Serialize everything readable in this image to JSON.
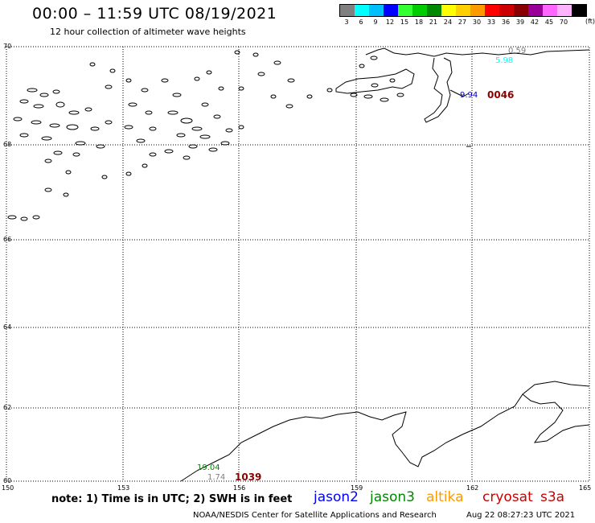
{
  "header": {
    "title": "00:00  –  11:59 UTC 08/19/2021",
    "subtitle": "12 hour collection of altimeter wave heights"
  },
  "colorbar": {
    "unit": "(ft)",
    "entries": [
      {
        "label": "3",
        "color": "#808080"
      },
      {
        "label": "6",
        "color": "#00ffff"
      },
      {
        "label": "9",
        "color": "#00bfff"
      },
      {
        "label": "12",
        "color": "#0000ff"
      },
      {
        "label": "15",
        "color": "#33ff33"
      },
      {
        "label": "18",
        "color": "#00cc00"
      },
      {
        "label": "21",
        "color": "#008800"
      },
      {
        "label": "24",
        "color": "#ffff00"
      },
      {
        "label": "27",
        "color": "#ffd000"
      },
      {
        "label": "30",
        "color": "#ff9900"
      },
      {
        "label": "33",
        "color": "#ff0000"
      },
      {
        "label": "36",
        "color": "#cc0000"
      },
      {
        "label": "39",
        "color": "#880000"
      },
      {
        "label": "42",
        "color": "#990099"
      },
      {
        "label": "45",
        "color": "#ff66ff"
      },
      {
        "label": "70",
        "color": "#ffb3ff"
      },
      {
        "label": "",
        "color": "#000000"
      }
    ]
  },
  "axes": {
    "lat_labels": [
      "70",
      "68",
      "66",
      "64",
      "62",
      "60"
    ],
    "lon_labels": [
      "150",
      "153",
      "156",
      "159",
      "162",
      "165"
    ]
  },
  "swh_readings": [
    {
      "value": "0.59",
      "color": "#808080"
    },
    {
      "value": "5.98",
      "color": "#00ffff"
    },
    {
      "value": "9.94",
      "color": "#0000aa"
    },
    {
      "value": "19.04",
      "color": "#008800"
    },
    {
      "value": "1.74",
      "color": "#808080"
    }
  ],
  "pass_times": [
    {
      "value": "0046",
      "color": "#880000"
    },
    {
      "value": "1039",
      "color": "#880000"
    }
  ],
  "note": "note:  1) Time is in UTC;  2) SWH is in feet",
  "legend": [
    {
      "label": "jason2",
      "color": "#0000ff"
    },
    {
      "label": "jason3",
      "color": "#008800"
    },
    {
      "label": "altika",
      "color": "#ff9900"
    },
    {
      "label": "cryosat",
      "color": "#cc0000"
    },
    {
      "label": "s3a",
      "color": "#cc0000"
    }
  ],
  "footer": {
    "credit": "NOAA/NESDIS Center for Satellite Applications and Research",
    "timestamp": "Aug 22 08:27:23 UTC 2021"
  }
}
